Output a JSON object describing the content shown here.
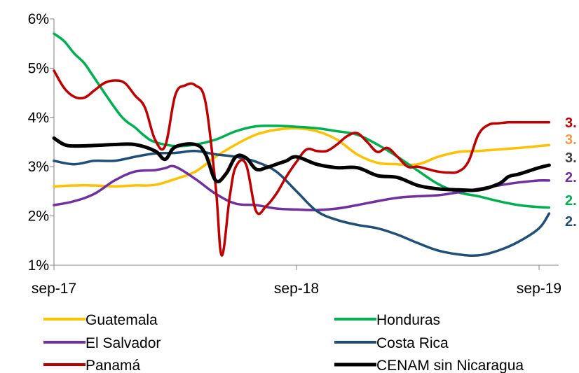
{
  "chart_data": {
    "type": "line",
    "title": "",
    "xlabel": "",
    "ylabel": "",
    "ylim": [
      1,
      6
    ],
    "y_tick_labels": [
      "1%",
      "2%",
      "3%",
      "4%",
      "5%",
      "6%"
    ],
    "x_tick_labels": [
      "sep-17",
      "sep-18",
      "sep-19"
    ],
    "x_tick_months": [
      0,
      12,
      24
    ],
    "xlim": [
      0,
      25
    ],
    "grid": false,
    "legend_placement": "bottom",
    "series": [
      {
        "name": "Guatemala",
        "color": "#FFC000",
        "end_label": "3.",
        "end_label_color": "#F79646",
        "x": [
          0,
          1,
          2,
          3,
          4,
          5,
          6,
          7,
          8,
          9,
          10,
          11,
          12,
          13,
          14,
          15,
          16,
          17,
          18,
          19,
          20,
          21,
          22,
          23,
          24,
          24.5
        ],
        "values": [
          2.6,
          2.62,
          2.62,
          2.6,
          2.62,
          2.63,
          2.75,
          2.9,
          3.2,
          3.45,
          3.65,
          3.75,
          3.78,
          3.72,
          3.55,
          3.25,
          3.08,
          3.05,
          3.05,
          3.2,
          3.3,
          3.32,
          3.35,
          3.38,
          3.42,
          3.44
        ]
      },
      {
        "name": "Honduras",
        "color": "#00B050",
        "end_label": "2.",
        "end_label_color": "#00B050",
        "x": [
          0,
          0.5,
          1,
          1.5,
          2,
          3,
          3.5,
          4,
          4.5,
          5,
          6,
          7,
          8,
          9,
          10,
          11,
          12,
          13,
          14,
          15,
          16,
          17,
          18,
          19,
          20,
          21,
          22,
          23,
          24,
          24.5
        ],
        "values": [
          5.7,
          5.55,
          5.3,
          5.1,
          4.8,
          4.2,
          3.95,
          3.8,
          3.62,
          3.5,
          3.42,
          3.45,
          3.55,
          3.72,
          3.82,
          3.83,
          3.81,
          3.78,
          3.72,
          3.65,
          3.45,
          3.2,
          2.92,
          2.65,
          2.48,
          2.4,
          2.3,
          2.22,
          2.18,
          2.17
        ]
      },
      {
        "name": "El Salvador",
        "color": "#7030A0",
        "end_label": "2.",
        "end_label_color": "#7030A0",
        "x": [
          0,
          1,
          2,
          3,
          4,
          5,
          5.5,
          6,
          7,
          8,
          9,
          10,
          11,
          12,
          13,
          14,
          15,
          16,
          17,
          18,
          19,
          20,
          21,
          22,
          23,
          24,
          24.5
        ],
        "values": [
          2.22,
          2.3,
          2.45,
          2.72,
          2.9,
          2.93,
          2.97,
          3.0,
          2.75,
          2.45,
          2.25,
          2.22,
          2.15,
          2.13,
          2.12,
          2.15,
          2.22,
          2.3,
          2.37,
          2.4,
          2.42,
          2.48,
          2.55,
          2.62,
          2.68,
          2.72,
          2.72
        ]
      },
      {
        "name": "Costa Rica",
        "color": "#1F4E79",
        "end_label": "2.",
        "end_label_color": "#1F4E79",
        "x": [
          0,
          1,
          2,
          3,
          4,
          5,
          6,
          7,
          8,
          9,
          10,
          11,
          12,
          13,
          14,
          15,
          16,
          17,
          18,
          19,
          20,
          21,
          22,
          23,
          24,
          24.5
        ],
        "values": [
          3.12,
          3.05,
          3.12,
          3.12,
          3.2,
          3.27,
          3.28,
          3.32,
          3.25,
          3.2,
          3.1,
          2.9,
          2.5,
          2.1,
          1.92,
          1.82,
          1.75,
          1.62,
          1.45,
          1.3,
          1.22,
          1.2,
          1.3,
          1.48,
          1.75,
          2.05
        ]
      },
      {
        "name": "Panamá",
        "color": "#C00000",
        "end_label": "3.",
        "end_label_color": "#C00000",
        "x": [
          0,
          0.5,
          1,
          1.5,
          2,
          2.5,
          3,
          3.5,
          4,
          4.5,
          5,
          5.5,
          6,
          6.5,
          7,
          7.5,
          8,
          8.3,
          8.7,
          9,
          9.5,
          10,
          10.5,
          11,
          11.5,
          12,
          12.5,
          13,
          13.5,
          14,
          14.5,
          15,
          15.5,
          16,
          16.5,
          17,
          17.5,
          18,
          18.5,
          19,
          19.5,
          20,
          20.5,
          21,
          21.5,
          22,
          22.5,
          23,
          23.5,
          24,
          24.5
        ],
        "values": [
          4.95,
          4.6,
          4.42,
          4.4,
          4.55,
          4.7,
          4.75,
          4.7,
          4.45,
          4.2,
          3.55,
          3.42,
          4.45,
          4.65,
          4.65,
          4.3,
          2.6,
          1.2,
          2.4,
          3.0,
          3.05,
          2.1,
          2.2,
          2.45,
          2.8,
          3.1,
          3.35,
          3.32,
          3.32,
          3.45,
          3.62,
          3.68,
          3.5,
          3.3,
          3.38,
          3.2,
          3.0,
          3.0,
          2.95,
          2.9,
          2.88,
          2.9,
          3.1,
          3.65,
          3.85,
          3.88,
          3.9,
          3.9,
          3.9,
          3.9,
          3.9
        ]
      },
      {
        "name": "CENAM sin Nicaragua",
        "color": "#000000",
        "end_label": "3.",
        "end_label_color": "#404040",
        "x": [
          0,
          0.5,
          1,
          2,
          3,
          4,
          5,
          5.5,
          6,
          7,
          7.5,
          8,
          8.5,
          9,
          9.5,
          10,
          10.5,
          11,
          11.5,
          12,
          13,
          14,
          15,
          16,
          17,
          18,
          19,
          20,
          21,
          22,
          22.5,
          23,
          24,
          24.5
        ],
        "values": [
          3.58,
          3.45,
          3.42,
          3.43,
          3.45,
          3.45,
          3.32,
          3.15,
          3.4,
          3.45,
          3.25,
          2.72,
          2.85,
          3.2,
          3.18,
          2.95,
          2.98,
          3.05,
          3.12,
          3.2,
          3.05,
          2.98,
          2.98,
          2.82,
          2.78,
          2.62,
          2.55,
          2.53,
          2.53,
          2.65,
          2.8,
          2.85,
          2.98,
          3.03
        ]
      }
    ]
  }
}
